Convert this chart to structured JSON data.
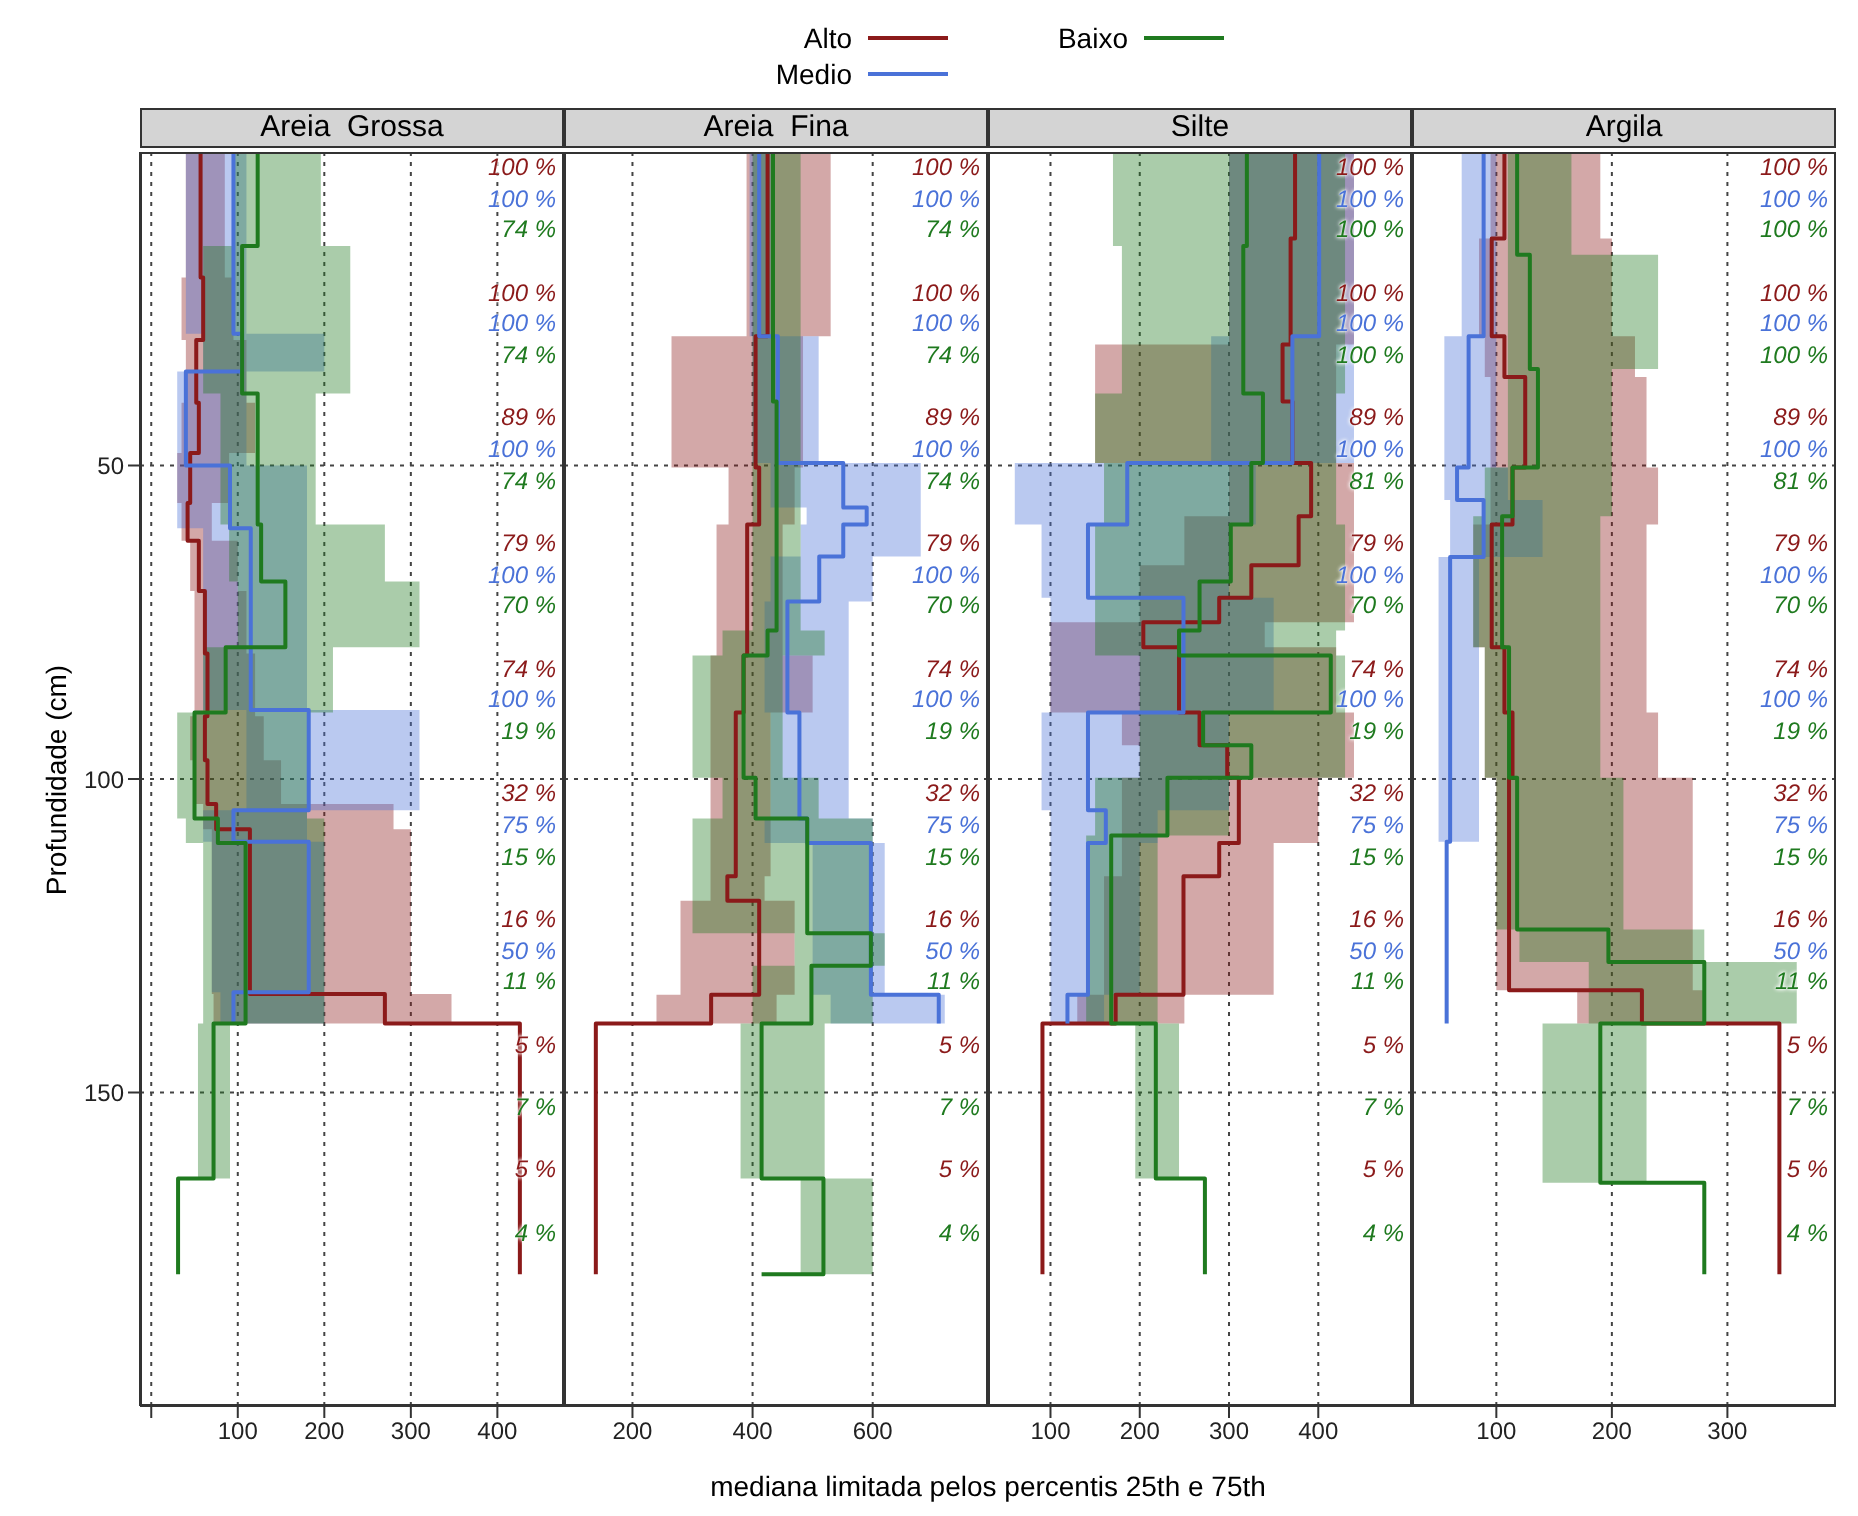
{
  "chart_data": [
    {
      "type": "step",
      "title": "Areia  Grossa",
      "orientation": "horizontal",
      "legend": "top",
      "ylabel": "Profundidade (cm)",
      "xlabel": "mediana limitada pelos percentis 25th e 75th",
      "grid": true,
      "xlim": [
        -13,
        477
      ],
      "xticks": [
        {
          "value": 0,
          "label": null
        },
        100,
        200,
        300,
        400
      ],
      "ylim": [
        200,
        0
      ],
      "yticks": [
        50,
        100,
        150
      ],
      "series": [
        {
          "name": "Alto",
          "color": "#8b1a1a",
          "x": [
            0,
            20,
            30,
            40,
            48,
            56,
            62,
            70,
            80,
            90,
            97,
            104,
            108,
            134.3,
            139,
            179
          ],
          "values": [
            57,
            60,
            52,
            55,
            45,
            42,
            55,
            62,
            65,
            62,
            65,
            75,
            114,
            270,
            426,
            426
          ],
          "lower": [
            40,
            35,
            40,
            35,
            30,
            35,
            45,
            50,
            50,
            45,
            50,
            60,
            70,
            72,
            72,
            null
          ],
          "upper": [
            85,
            95,
            110,
            120,
            90,
            70,
            100,
            110,
            120,
            130,
            150,
            280,
            300,
            347,
            347,
            null
          ]
        },
        {
          "name": "Medio",
          "color": "#4a72d8",
          "x": [
            0,
            29,
            35,
            50,
            60,
            89,
            105,
            110,
            134,
            139
          ],
          "values": [
            95,
            105,
            40,
            91,
            115,
            182,
            95,
            182,
            95,
            95
          ],
          "lower": [
            40,
            60,
            30,
            30,
            60,
            110,
            60,
            70,
            80,
            80
          ],
          "upper": [
            110,
            200,
            110,
            180,
            180,
            310,
            180,
            200,
            200,
            200
          ]
        },
        {
          "name": "Baixo",
          "color": "#1f7a1f",
          "x": [
            0,
            15,
            38.5,
            59.4,
            68.5,
            79,
            89.4,
            106.3,
            110.2,
            139,
            163.7,
            179
          ],
          "values": [
            123,
            105,
            123,
            127,
            155,
            86,
            50,
            77,
            109,
            72,
            31,
            31
          ],
          "lower": [
            95,
            60,
            80,
            90,
            100,
            60,
            30,
            40,
            60,
            54,
            54,
            null
          ],
          "upper": [
            196,
            230,
            190,
            270,
            310,
            210,
            180,
            200,
            200,
            91,
            91,
            null
          ]
        }
      ],
      "annotations": [
        "100 %",
        "100 %",
        "74 %",
        "100 %",
        "100 %",
        "74 %",
        "89 %",
        "100 %",
        "74 %",
        "79 %",
        "100 %",
        "70 %",
        "74 %",
        "100 %",
        "19 %",
        "32 %",
        "75 %",
        "15 %",
        "16 %",
        "50 %",
        "11 %",
        "5 %",
        "7 %",
        "5 %",
        "4 %"
      ]
    },
    {
      "type": "step",
      "title": "Areia  Fina",
      "orientation": "horizontal",
      "grid": true,
      "tick_labels": "x",
      "xlim": [
        86,
        792
      ],
      "xticks": [
        200,
        400,
        600
      ],
      "ylim": [
        200,
        0
      ],
      "yticks": [
        50,
        100,
        150
      ],
      "series": [
        {
          "color": "#8b1a1a",
          "x": [
            0,
            29.4,
            50.3,
            59.4,
            80.3,
            89.4,
            115.5,
            119.4,
            134.4,
            139,
            179
          ],
          "values": [
            425,
            405,
            411,
            391,
            385,
            372,
            358,
            411,
            331,
            139,
            139
          ],
          "lower": [
            390,
            265,
            360,
            340,
            330,
            330,
            330,
            280,
            240,
            240,
            null
          ],
          "upper": [
            530,
            484,
            470,
            450,
            500,
            430,
            420,
            470,
            440,
            440,
            null
          ]
        },
        {
          "color": "#4a72d8",
          "x": [
            0,
            29.4,
            49.6,
            56.7,
            59.4,
            64.5,
            71.7,
            89.4,
            106.3,
            110.2,
            134.4,
            139
          ],
          "values": [
            411,
            442,
            551,
            590,
            551,
            511,
            458,
            478,
            491,
            597,
            710,
            710
          ],
          "lower": [
            395,
            400,
            430,
            490,
            480,
            430,
            420,
            430,
            420,
            500,
            530,
            530
          ],
          "upper": [
            430,
            510,
            680,
            680,
            680,
            600,
            560,
            560,
            600,
            620,
            720,
            720
          ]
        },
        {
          "color": "#1f7a1f",
          "x": [
            0,
            39.8,
            76.3,
            80.3,
            99.8,
            106.3,
            124.6,
            129.8,
            139,
            163.7,
            179
          ],
          "values": [
            434,
            440,
            425,
            385,
            405,
            491,
            597,
            498,
            415,
            518,
            415
          ],
          "lower": [
            400,
            400,
            350,
            300,
            350,
            300,
            470,
            400,
            380,
            480,
            480
          ],
          "upper": [
            480,
            480,
            520,
            450,
            510,
            600,
            620,
            600,
            520,
            600,
            600
          ]
        }
      ],
      "annotations": [
        "100 %",
        "100 %",
        "74 %",
        "100 %",
        "100 %",
        "74 %",
        "89 %",
        "100 %",
        "74 %",
        "79 %",
        "100 %",
        "70 %",
        "74 %",
        "100 %",
        "19 %",
        "32 %",
        "75 %",
        "15 %",
        "16 %",
        "50 %",
        "11 %",
        "5 %",
        "7 %",
        "5 %",
        "4 %"
      ]
    },
    {
      "type": "step",
      "title": "Silte",
      "orientation": "horizontal",
      "grid": true,
      "tick_labels": "x",
      "xlim": [
        30,
        505
      ],
      "xticks": [
        100,
        200,
        300,
        400
      ],
      "ylim": [
        200,
        0
      ],
      "yticks": [
        50,
        100,
        150
      ],
      "series": [
        {
          "color": "#8b1a1a",
          "x": [
            0,
            13.8,
            30.7,
            39.8,
            49.6,
            58.1,
            65.9,
            71.1,
            75,
            79,
            89.4,
            94.6,
            99.8,
            110.2,
            115.5,
            134.4,
            139,
            179
          ],
          "values": [
            374,
            369,
            360,
            371,
            392,
            378,
            325,
            289,
            204,
            244,
            267,
            298,
            311,
            289,
            249,
            173,
            91,
            91
          ],
          "lower": [
            300,
            300,
            150,
            150,
            300,
            250,
            200,
            200,
            100,
            100,
            180,
            200,
            180,
            180,
            160,
            130,
            130,
            null
          ],
          "upper": [
            440,
            440,
            420,
            420,
            440,
            440,
            440,
            440,
            340,
            420,
            440,
            440,
            400,
            350,
            350,
            250,
            250,
            null
          ]
        },
        {
          "color": "#4a72d8",
          "x": [
            0,
            29.4,
            49.6,
            59.4,
            71.1,
            89.4,
            105,
            110.2,
            134.4,
            139
          ],
          "values": [
            401,
            371,
            186,
            142,
            249,
            142,
            162,
            142,
            119,
            119
          ],
          "lower": [
            300,
            280,
            60,
            90,
            100,
            90,
            100,
            100,
            100,
            100
          ],
          "upper": [
            440,
            440,
            330,
            300,
            350,
            300,
            220,
            200,
            160,
            160
          ]
        },
        {
          "color": "#1f7a1f",
          "x": [
            0,
            15,
            38.5,
            49.6,
            59.4,
            68.5,
            76.3,
            80.3,
            89.4,
            94.6,
            99.8,
            109,
            139,
            163.7,
            179
          ],
          "values": [
            320,
            316,
            338,
            325,
            302,
            267,
            244,
            414,
            271,
            325,
            231,
            168,
            218,
            273,
            273
          ],
          "lower": [
            170,
            180,
            150,
            160,
            150,
            150,
            150,
            200,
            200,
            200,
            150,
            140,
            195,
            195,
            null
          ],
          "upper": [
            430,
            430,
            420,
            420,
            430,
            430,
            420,
            430,
            430,
            430,
            300,
            220,
            244,
            244,
            null
          ]
        }
      ],
      "annotations": [
        "100 %",
        "100 %",
        "100 %",
        "100 %",
        "100 %",
        "100 %",
        "89 %",
        "100 %",
        "81 %",
        "79 %",
        "100 %",
        "70 %",
        "74 %",
        "100 %",
        "19 %",
        "32 %",
        "75 %",
        "15 %",
        "16 %",
        "50 %",
        "11 %",
        "5 %",
        "7 %",
        "5 %",
        "4 %"
      ]
    },
    {
      "type": "step",
      "title": "Argila",
      "orientation": "horizontal",
      "grid": true,
      "tick_labels": "x",
      "xlim": [
        27,
        394
      ],
      "xticks": [
        100,
        200,
        300
      ],
      "ylim": [
        200,
        0
      ],
      "yticks": [
        50,
        100,
        150
      ],
      "series": [
        {
          "color": "#8b1a1a",
          "x": [
            0,
            13.8,
            29.4,
            35.9,
            50.3,
            59.4,
            79,
            89.4,
            99.8,
            133.7,
            139,
            179
          ],
          "values": [
            107,
            96,
            107,
            125,
            114,
            96,
            107,
            114,
            111,
            226,
            345,
            345
          ],
          "lower": [
            95,
            85,
            90,
            95,
            95,
            80,
            90,
            90,
            100,
            170,
            170,
            null
          ],
          "upper": [
            190,
            200,
            220,
            230,
            240,
            230,
            230,
            240,
            270,
            280,
            280,
            null
          ]
        },
        {
          "color": "#4a72d8",
          "x": [
            0,
            29.4,
            50.3,
            55.5,
            64.6,
            110,
            139
          ],
          "values": [
            89,
            76,
            66,
            89,
            60,
            57,
            57
          ],
          "lower": [
            70,
            55,
            55,
            60,
            50,
            50,
            null
          ],
          "upper": [
            100,
            100,
            110,
            140,
            85,
            85,
            null
          ]
        },
        {
          "color": "#1f7a1f",
          "x": [
            0,
            16.4,
            34.6,
            50.3,
            58.1,
            79,
            99.8,
            124,
            129.2,
            139,
            164.4,
            179
          ],
          "values": [
            118,
            129,
            136,
            114,
            105,
            111,
            118,
            197,
            280,
            190,
            280,
            280
          ],
          "lower": [
            110,
            110,
            110,
            90,
            80,
            90,
            100,
            120,
            180,
            140,
            140,
            null
          ],
          "upper": [
            165,
            240,
            200,
            200,
            190,
            190,
            210,
            280,
            360,
            230,
            230,
            null
          ]
        }
      ],
      "annotations": [
        "100 %",
        "100 %",
        "100 %",
        "100 %",
        "100 %",
        "100 %",
        "89 %",
        "100 %",
        "81 %",
        "79 %",
        "100 %",
        "70 %",
        "74 %",
        "100 %",
        "19 %",
        "32 %",
        "75 %",
        "15 %",
        "16 %",
        "50 %",
        "11 %",
        "5 %",
        "7 %",
        "5 %",
        "4 %"
      ]
    }
  ]
}
